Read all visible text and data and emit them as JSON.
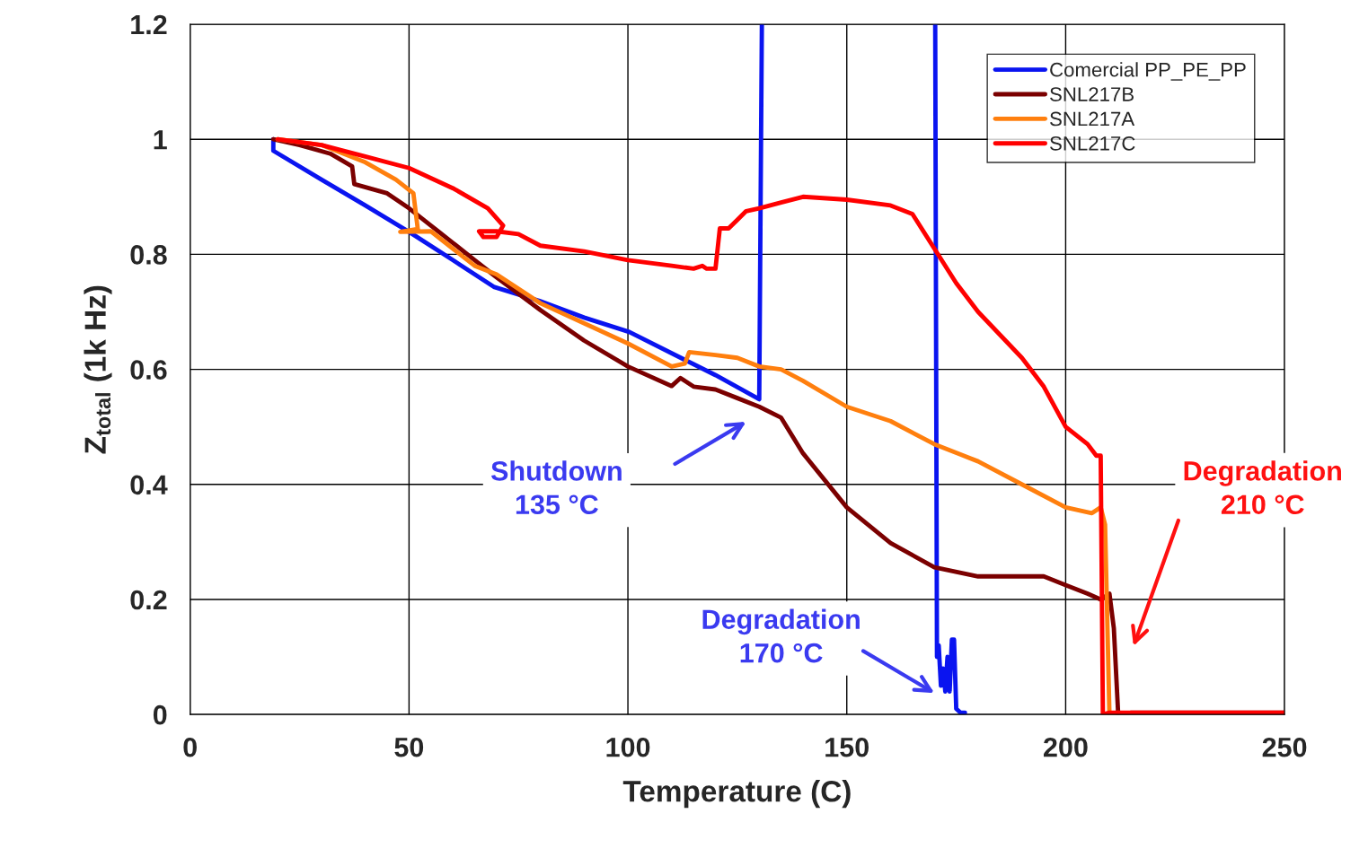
{
  "chart_data": {
    "type": "line",
    "xlabel": "Temperature (C)",
    "ylabel": "Z$_{total}$ (1k Hz)",
    "xlim": [
      0,
      250
    ],
    "xticks": [
      0,
      50,
      100,
      150,
      200,
      250
    ],
    "ylim": [
      0,
      1.2
    ],
    "yticks": [
      0,
      0.2,
      0.4,
      0.6,
      0.8,
      1,
      1.2
    ],
    "grid": true,
    "legend": "top right",
    "marker": "none",
    "line_style": "solid",
    "series": [
      {
        "name": "Comercial PP_PE_PP",
        "color": "#0a14f0",
        "x": [
          19,
          19,
          30,
          40,
          50,
          60,
          69.5,
          79.8,
          90,
          100.3,
          112.6,
          120,
          130,
          130.6,
          null,
          170.2,
          170.6,
          171,
          171.5,
          172,
          172.5,
          173,
          173.5,
          174,
          174.5,
          175,
          176,
          177
        ],
        "values": [
          1.0,
          0.98,
          0.93,
          0.885,
          0.839,
          0.79,
          0.743,
          0.719,
          0.69,
          0.665,
          0.618,
          0.59,
          0.548,
          1.2,
          null,
          1.2,
          0.1,
          0.12,
          0.05,
          0.08,
          0.04,
          0.1,
          0.04,
          0.13,
          0.13,
          0.01,
          0.003,
          0.003
        ]
      },
      {
        "name": "SNL217B",
        "color": "#7b0000",
        "x": [
          19,
          25,
          32,
          37,
          37.5,
          45,
          50,
          55,
          60,
          65,
          70,
          80,
          90,
          100,
          110,
          112,
          115,
          120,
          125,
          130,
          135,
          140,
          150,
          160,
          170,
          180,
          190,
          195,
          200,
          205,
          208,
          210,
          211,
          212,
          215,
          250
        ],
        "values": [
          1.0,
          0.99,
          0.975,
          0.953,
          0.922,
          0.906,
          0.88,
          0.85,
          0.82,
          0.79,
          0.76,
          0.703,
          0.65,
          0.605,
          0.571,
          0.585,
          0.57,
          0.565,
          0.55,
          0.535,
          0.516,
          0.454,
          0.36,
          0.298,
          0.256,
          0.24,
          0.24,
          0.24,
          0.225,
          0.21,
          0.2,
          0.21,
          0.15,
          0.0,
          0.003,
          0.003
        ]
      },
      {
        "name": "SNL217A",
        "color": "#ff7f0e",
        "x": [
          20,
          30,
          40,
          47,
          51,
          52,
          48,
          55,
          60,
          65,
          70,
          80,
          90,
          100,
          110,
          113,
          114,
          120,
          125,
          130,
          135,
          140,
          150,
          160,
          170,
          180,
          190,
          200,
          206,
          208,
          209,
          210,
          212
        ],
        "values": [
          1.0,
          0.99,
          0.96,
          0.93,
          0.906,
          0.844,
          0.839,
          0.84,
          0.81,
          0.78,
          0.765,
          0.715,
          0.68,
          0.645,
          0.605,
          0.61,
          0.63,
          0.625,
          0.62,
          0.605,
          0.6,
          0.58,
          0.535,
          0.51,
          0.47,
          0.44,
          0.4,
          0.36,
          0.35,
          0.36,
          0.33,
          0.0,
          0.003
        ]
      },
      {
        "name": "SNL217C",
        "color": "#ff0000",
        "x": [
          20,
          30,
          40,
          50,
          60,
          68,
          71.5,
          70,
          67,
          66,
          70,
          75,
          80,
          90,
          100,
          110,
          115,
          117,
          118,
          120,
          121,
          123,
          125,
          127,
          130,
          135,
          140,
          150,
          160,
          165,
          170,
          175,
          180,
          190,
          195,
          200,
          205,
          207,
          208,
          208.5,
          210,
          250
        ],
        "values": [
          1.0,
          0.99,
          0.97,
          0.95,
          0.915,
          0.88,
          0.85,
          0.83,
          0.83,
          0.84,
          0.84,
          0.835,
          0.815,
          0.805,
          0.79,
          0.78,
          0.775,
          0.78,
          0.775,
          0.775,
          0.845,
          0.845,
          0.86,
          0.875,
          0.88,
          0.89,
          0.9,
          0.895,
          0.885,
          0.87,
          0.81,
          0.75,
          0.7,
          0.62,
          0.57,
          0.5,
          0.47,
          0.45,
          0.45,
          0.0,
          0.003,
          0.003
        ]
      }
    ],
    "annotations": [
      "Shutdown\n135 °C",
      "Degradation\n170 °C",
      "Degradation\n210 °C"
    ]
  }
}
